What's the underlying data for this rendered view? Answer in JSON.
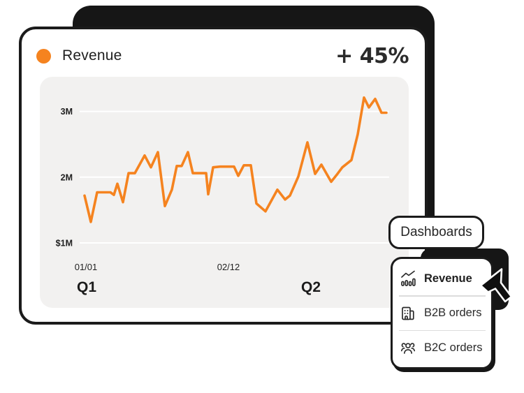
{
  "accent": "#F5831F",
  "ink": "#1b1b1b",
  "header": {
    "title": "Revenue",
    "delta": "+ 45%"
  },
  "dashboards_button": {
    "label": "Dashboards"
  },
  "menu": {
    "items": [
      {
        "label": "Revenue",
        "icon": "trend-chart-icon",
        "active": true
      },
      {
        "label": "B2B orders",
        "icon": "building-icon",
        "active": false
      },
      {
        "label": "B2C orders",
        "icon": "people-icon",
        "active": false
      }
    ]
  },
  "chart_data": {
    "type": "line",
    "title": "Revenue",
    "unit": "millions USD",
    "grid": true,
    "legend": "none",
    "ylim": [
      1,
      3.4
    ],
    "y_ticks": [
      {
        "label": "$1M",
        "value": 1
      },
      {
        "label": "2M",
        "value": 2
      },
      {
        "label": "3M",
        "value": 3
      }
    ],
    "x_ticks": [
      {
        "label": "01/01",
        "x": 123
      },
      {
        "label": "02/12",
        "x": 327
      }
    ],
    "quarter_labels": [
      {
        "label": "Q1",
        "x": 124
      },
      {
        "label": "Q2",
        "x": 445
      }
    ],
    "series": [
      {
        "name": "Revenue",
        "color": "#F5831F",
        "points": [
          [
            121,
            1.72
          ],
          [
            130,
            1.32
          ],
          [
            139,
            1.77
          ],
          [
            148,
            1.77
          ],
          [
            158,
            1.77
          ],
          [
            163,
            1.73
          ],
          [
            168,
            1.9
          ],
          [
            176,
            1.62
          ],
          [
            184,
            2.06
          ],
          [
            193,
            2.06
          ],
          [
            207,
            2.33
          ],
          [
            216,
            2.15
          ],
          [
            226,
            2.38
          ],
          [
            236,
            1.56
          ],
          [
            246,
            1.81
          ],
          [
            253,
            2.17
          ],
          [
            260,
            2.17
          ],
          [
            269,
            2.38
          ],
          [
            276,
            2.06
          ],
          [
            286,
            2.06
          ],
          [
            295,
            2.06
          ],
          [
            298,
            1.74
          ],
          [
            305,
            2.15
          ],
          [
            315,
            2.16
          ],
          [
            325,
            2.16
          ],
          [
            335,
            2.16
          ],
          [
            341,
            2.02
          ],
          [
            349,
            2.18
          ],
          [
            359,
            2.18
          ],
          [
            367,
            1.6
          ],
          [
            380,
            1.48
          ],
          [
            397,
            1.81
          ],
          [
            408,
            1.66
          ],
          [
            415,
            1.72
          ],
          [
            427,
            2.01
          ],
          [
            440,
            2.53
          ],
          [
            451,
            2.05
          ],
          [
            460,
            2.19
          ],
          [
            474,
            1.93
          ],
          [
            483,
            2.05
          ],
          [
            490,
            2.15
          ],
          [
            503,
            2.26
          ],
          [
            512,
            2.65
          ],
          [
            521,
            3.21
          ],
          [
            528,
            3.06
          ],
          [
            537,
            3.19
          ],
          [
            546,
            2.98
          ],
          [
            553,
            2.98
          ]
        ]
      }
    ]
  }
}
